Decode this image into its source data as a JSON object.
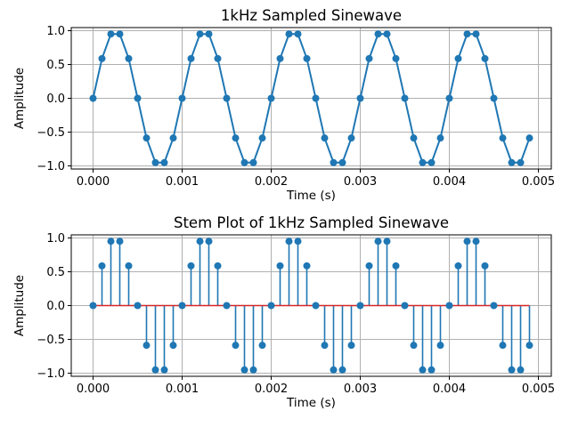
{
  "figure": {
    "background": "#ffffff",
    "axes_edge_color": "#000000",
    "grid_color": "#b0b0b0"
  },
  "chart_data": [
    {
      "type": "line",
      "title": "1kHz Sampled Sinewave",
      "xlabel": "Time (s)",
      "ylabel": "Amplitude",
      "grid": true,
      "legend": "none",
      "line_color": "#1f77b4",
      "marker_color": "#1f77b4",
      "marker": "circle",
      "xlim": [
        -0.000245,
        0.005145
      ],
      "ylim": [
        -1.0462,
        1.0462
      ],
      "xticks": [
        {
          "v": 0.0,
          "label": "0.000"
        },
        {
          "v": 0.001,
          "label": "0.001"
        },
        {
          "v": 0.002,
          "label": "0.002"
        },
        {
          "v": 0.003,
          "label": "0.003"
        },
        {
          "v": 0.004,
          "label": "0.004"
        },
        {
          "v": 0.005,
          "label": "0.005"
        }
      ],
      "yticks": [
        {
          "v": 1.0,
          "label": "1.0"
        },
        {
          "v": 0.5,
          "label": "0.5"
        },
        {
          "v": 0.0,
          "label": "0.0"
        },
        {
          "v": -0.5,
          "label": "−0.5"
        },
        {
          "v": -1.0,
          "label": "−1.0"
        }
      ],
      "x": [
        0.0,
        0.0001,
        0.0002,
        0.0003,
        0.0004,
        0.0005,
        0.0006,
        0.0007,
        0.0008,
        0.0009,
        0.001,
        0.0011,
        0.0012,
        0.0013,
        0.0014,
        0.0015,
        0.0016,
        0.0017,
        0.0018,
        0.0019,
        0.002,
        0.0021,
        0.0022,
        0.0023,
        0.0024,
        0.0025,
        0.0026,
        0.0027,
        0.0028,
        0.0029,
        0.003,
        0.0031,
        0.0032,
        0.0033,
        0.0034,
        0.0035,
        0.0036,
        0.0037,
        0.0038,
        0.0039,
        0.004,
        0.0041,
        0.0042,
        0.0043,
        0.0044,
        0.0045,
        0.0046,
        0.0047,
        0.0048,
        0.0049
      ],
      "y": [
        0.0,
        0.5878,
        0.9511,
        0.9511,
        0.5878,
        0.0,
        -0.5878,
        -0.9511,
        -0.9511,
        -0.5878,
        0.0,
        0.5878,
        0.9511,
        0.9511,
        0.5878,
        0.0,
        -0.5878,
        -0.9511,
        -0.9511,
        -0.5878,
        0.0,
        0.5878,
        0.9511,
        0.9511,
        0.5878,
        0.0,
        -0.5878,
        -0.9511,
        -0.9511,
        -0.5878,
        0.0,
        0.5878,
        0.9511,
        0.9511,
        0.5878,
        0.0,
        -0.5878,
        -0.9511,
        -0.9511,
        -0.5878,
        0.0,
        0.5878,
        0.9511,
        0.9511,
        0.5878,
        0.0,
        -0.5878,
        -0.9511,
        -0.9511,
        -0.5878
      ]
    },
    {
      "type": "stem",
      "title": "Stem Plot of 1kHz Sampled Sinewave",
      "xlabel": "Time (s)",
      "ylabel": "Amplitude",
      "grid": true,
      "legend": "none",
      "line_color": "#1f77b4",
      "marker_color": "#1f77b4",
      "marker": "circle",
      "baseline_color": "#d62728",
      "baseline_value": 0.0,
      "xlim": [
        -0.000245,
        0.005145
      ],
      "ylim": [
        -1.0462,
        1.0462
      ],
      "xticks": [
        {
          "v": 0.0,
          "label": "0.000"
        },
        {
          "v": 0.001,
          "label": "0.001"
        },
        {
          "v": 0.002,
          "label": "0.002"
        },
        {
          "v": 0.003,
          "label": "0.003"
        },
        {
          "v": 0.004,
          "label": "0.004"
        },
        {
          "v": 0.005,
          "label": "0.005"
        }
      ],
      "yticks": [
        {
          "v": 1.0,
          "label": "1.0"
        },
        {
          "v": 0.5,
          "label": "0.5"
        },
        {
          "v": 0.0,
          "label": "0.0"
        },
        {
          "v": -0.5,
          "label": "−0.5"
        },
        {
          "v": -1.0,
          "label": "−1.0"
        }
      ],
      "x": [
        0.0,
        0.0001,
        0.0002,
        0.0003,
        0.0004,
        0.0005,
        0.0006,
        0.0007,
        0.0008,
        0.0009,
        0.001,
        0.0011,
        0.0012,
        0.0013,
        0.0014,
        0.0015,
        0.0016,
        0.0017,
        0.0018,
        0.0019,
        0.002,
        0.0021,
        0.0022,
        0.0023,
        0.0024,
        0.0025,
        0.0026,
        0.0027,
        0.0028,
        0.0029,
        0.003,
        0.0031,
        0.0032,
        0.0033,
        0.0034,
        0.0035,
        0.0036,
        0.0037,
        0.0038,
        0.0039,
        0.004,
        0.0041,
        0.0042,
        0.0043,
        0.0044,
        0.0045,
        0.0046,
        0.0047,
        0.0048,
        0.0049
      ],
      "y": [
        0.0,
        0.5878,
        0.9511,
        0.9511,
        0.5878,
        0.0,
        -0.5878,
        -0.9511,
        -0.9511,
        -0.5878,
        0.0,
        0.5878,
        0.9511,
        0.9511,
        0.5878,
        0.0,
        -0.5878,
        -0.9511,
        -0.9511,
        -0.5878,
        0.0,
        0.5878,
        0.9511,
        0.9511,
        0.5878,
        0.0,
        -0.5878,
        -0.9511,
        -0.9511,
        -0.5878,
        0.0,
        0.5878,
        0.9511,
        0.9511,
        0.5878,
        0.0,
        -0.5878,
        -0.9511,
        -0.9511,
        -0.5878,
        0.0,
        0.5878,
        0.9511,
        0.9511,
        0.5878,
        0.0,
        -0.5878,
        -0.9511,
        -0.9511,
        -0.5878
      ]
    }
  ]
}
